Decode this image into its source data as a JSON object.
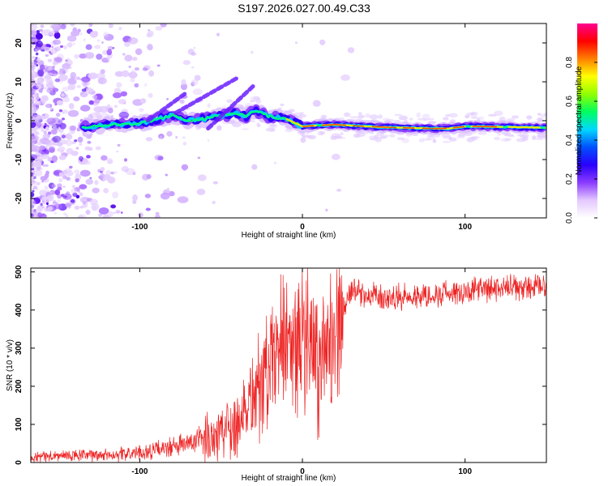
{
  "title": "S197.2026.027.00.49.C33",
  "chart_data": [
    {
      "type": "heatmap",
      "name": "spectrogram",
      "xlabel": "Height of straight line (km)",
      "ylabel": "Frequency (Hz)",
      "xlim": [
        -167,
        150
      ],
      "ylim": [
        -25,
        25
      ],
      "x_ticks": [
        -100,
        0,
        100
      ],
      "y_ticks": [
        -20,
        -10,
        0,
        10,
        20
      ],
      "ridge": {
        "x": [
          -130,
          -120,
          -110,
          -100,
          -90,
          -80,
          -70,
          -60,
          -50,
          -40,
          -35,
          -30,
          -20,
          -10,
          0,
          10,
          20,
          40,
          60,
          80,
          90,
          100,
          110,
          150
        ],
        "y": [
          -1.5,
          -1.2,
          -1.0,
          -0.6,
          0.2,
          1.5,
          0.0,
          0.5,
          1.2,
          2.0,
          1.0,
          2.5,
          1.0,
          0.5,
          -1.5,
          -1.2,
          -1.0,
          -1.5,
          -1.8,
          -2.0,
          -2.0,
          -1.5,
          -1.5,
          -1.8
        ]
      },
      "colorbar": {
        "label": "Normalized spectral amplitude",
        "range": [
          0,
          1
        ],
        "ticks": [
          0.0,
          0.2,
          0.4,
          0.6,
          0.8
        ],
        "tick_labels": [
          "0.0",
          "0.2",
          "0.4",
          "0.6",
          "0.8"
        ],
        "colors": [
          "#ffffff",
          "#e4c8ff",
          "#8a3bff",
          "#2a00ff",
          "#0050ff",
          "#00d8ff",
          "#00ff60",
          "#90ff00",
          "#ffff00",
          "#ff8000",
          "#ff0000",
          "#ff0090"
        ]
      }
    },
    {
      "type": "line",
      "name": "snr",
      "xlabel": "Height of straight line (km)",
      "ylabel": "SNR (10 * v/v)",
      "xlim": [
        -167,
        150
      ],
      "ylim": [
        0,
        510
      ],
      "x_ticks": [
        -100,
        0,
        100
      ],
      "y_ticks": [
        0,
        100,
        200,
        300,
        400,
        500
      ],
      "color": "#ee2222",
      "trend": {
        "x": [
          -167,
          -120,
          -100,
          -80,
          -60,
          -40,
          -30,
          -20,
          -10,
          0,
          10,
          20,
          25,
          30,
          50,
          80,
          100,
          120,
          150
        ],
        "y": [
          15,
          20,
          25,
          40,
          60,
          110,
          180,
          240,
          300,
          330,
          250,
          320,
          400,
          450,
          430,
          440,
          450,
          455,
          460
        ]
      }
    }
  ]
}
